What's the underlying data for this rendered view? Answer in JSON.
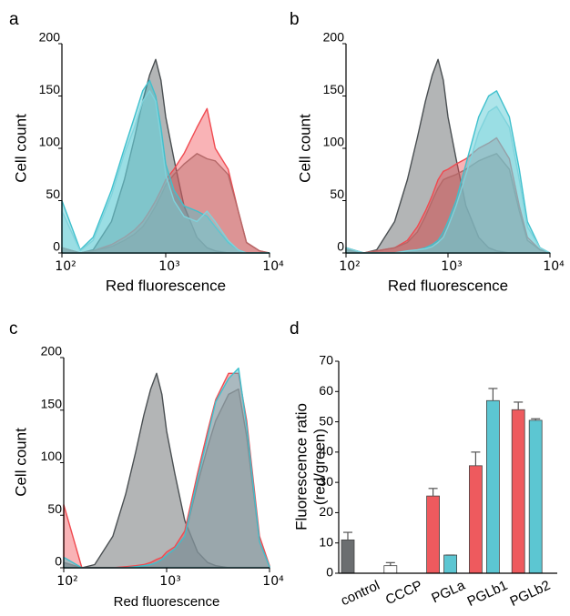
{
  "chart_data": [
    {
      "type": "area",
      "panel_label": "a",
      "ylabel": "Cell count",
      "xlabel": "Red fluorescence",
      "xscale": "log",
      "xlim": [
        100,
        10000
      ],
      "ylim": [
        0,
        200
      ],
      "xticks": [
        {
          "value": 100,
          "label": "10²"
        },
        {
          "value": 1000,
          "label": "10³"
        },
        {
          "value": 10000,
          "label": "10⁴"
        }
      ],
      "yticks": [
        0,
        50,
        100,
        150,
        200
      ],
      "x": [
        100,
        150,
        200,
        300,
        400,
        500,
        600,
        700,
        800,
        900,
        1000,
        1200,
        1500,
        2000,
        2500,
        3000,
        4000,
        5000,
        6000,
        8000,
        10000
      ],
      "series": [
        {
          "color": "#4a4f52",
          "values": [
            5,
            0,
            3,
            30,
            70,
            110,
            145,
            170,
            185,
            165,
            130,
            90,
            45,
            15,
            5,
            2,
            0,
            0,
            0,
            0,
            0
          ]
        },
        {
          "color": "#f04a50",
          "values": [
            5,
            0,
            2,
            8,
            15,
            22,
            30,
            40,
            50,
            60,
            70,
            80,
            95,
            120,
            138,
            100,
            80,
            40,
            10,
            2,
            0
          ]
        },
        {
          "color": "#b46868",
          "values": [
            5,
            0,
            2,
            6,
            12,
            18,
            25,
            35,
            45,
            55,
            65,
            75,
            85,
            95,
            90,
            88,
            75,
            40,
            10,
            2,
            0
          ]
        },
        {
          "color": "#3fc0cd",
          "values": [
            50,
            3,
            15,
            60,
            100,
            130,
            155,
            165,
            150,
            120,
            85,
            60,
            45,
            40,
            35,
            25,
            10,
            3,
            0,
            0,
            0
          ]
        },
        {
          "color": "#7fd3dc",
          "values": [
            40,
            2,
            12,
            55,
            95,
            120,
            145,
            155,
            145,
            110,
            75,
            50,
            35,
            30,
            40,
            30,
            12,
            3,
            0,
            0,
            0
          ]
        }
      ]
    },
    {
      "type": "area",
      "panel_label": "b",
      "ylabel": "Cell count",
      "xlabel": "Red fluorescence",
      "xscale": "log",
      "xlim": [
        100,
        10000
      ],
      "ylim": [
        0,
        200
      ],
      "xticks": [
        {
          "value": 100,
          "label": "10²"
        },
        {
          "value": 1000,
          "label": "10³"
        },
        {
          "value": 10000,
          "label": "10⁴"
        }
      ],
      "yticks": [
        0,
        50,
        100,
        150,
        200
      ],
      "x": [
        100,
        150,
        200,
        300,
        400,
        500,
        600,
        700,
        800,
        900,
        1000,
        1200,
        1500,
        2000,
        2500,
        3000,
        4000,
        5000,
        6000,
        8000,
        10000
      ],
      "series": [
        {
          "color": "#4a4f52",
          "values": [
            5,
            0,
            3,
            30,
            70,
            110,
            145,
            170,
            185,
            165,
            130,
            90,
            45,
            15,
            5,
            2,
            0,
            0,
            0,
            0,
            0
          ]
        },
        {
          "color": "#f04a50",
          "values": [
            3,
            0,
            2,
            5,
            12,
            25,
            40,
            55,
            70,
            78,
            80,
            85,
            90,
            100,
            105,
            110,
            90,
            45,
            15,
            3,
            0
          ]
        },
        {
          "color": "#b46868",
          "values": [
            3,
            0,
            2,
            5,
            10,
            20,
            35,
            50,
            62,
            70,
            72,
            75,
            80,
            88,
            92,
            95,
            80,
            40,
            12,
            3,
            0
          ]
        },
        {
          "color": "#3fc0cd",
          "values": [
            5,
            0,
            0,
            0,
            2,
            3,
            5,
            8,
            12,
            20,
            30,
            50,
            85,
            130,
            150,
            155,
            130,
            80,
            30,
            5,
            0
          ]
        },
        {
          "color": "#7fd3dc",
          "values": [
            5,
            0,
            0,
            0,
            2,
            3,
            4,
            6,
            10,
            15,
            25,
            45,
            75,
            115,
            135,
            140,
            120,
            70,
            25,
            5,
            0
          ]
        }
      ]
    },
    {
      "type": "area",
      "panel_label": "c",
      "ylabel": "Cell count",
      "xlabel": "Red fluorescence",
      "xscale": "log",
      "xlim": [
        100,
        10000
      ],
      "ylim": [
        0,
        200
      ],
      "xticks": [
        {
          "value": 100,
          "label": "10²"
        },
        {
          "value": 1000,
          "label": "10³"
        },
        {
          "value": 10000,
          "label": "10⁴"
        }
      ],
      "yticks": [
        0,
        50,
        100,
        150,
        200
      ],
      "x": [
        100,
        150,
        200,
        300,
        400,
        500,
        600,
        700,
        800,
        900,
        1000,
        1200,
        1500,
        2000,
        2500,
        3000,
        4000,
        5000,
        6000,
        8000,
        10000
      ],
      "series": [
        {
          "color": "#4a4f52",
          "values": [
            5,
            0,
            3,
            30,
            70,
            110,
            145,
            170,
            185,
            165,
            130,
            90,
            45,
            15,
            5,
            2,
            0,
            0,
            0,
            0,
            0
          ]
        },
        {
          "color": "#f04a50",
          "values": [
            60,
            0,
            0,
            0,
            1,
            2,
            3,
            5,
            8,
            10,
            15,
            20,
            35,
            90,
            130,
            160,
            185,
            185,
            140,
            30,
            2
          ]
        },
        {
          "color": "#b46868",
          "values": [
            5,
            0,
            0,
            0,
            0,
            1,
            2,
            3,
            5,
            8,
            12,
            18,
            30,
            80,
            115,
            140,
            165,
            170,
            125,
            25,
            1
          ]
        },
        {
          "color": "#3fc0cd",
          "values": [
            10,
            0,
            0,
            0,
            0,
            1,
            2,
            3,
            5,
            8,
            12,
            18,
            30,
            85,
            125,
            158,
            180,
            190,
            135,
            25,
            1
          ]
        }
      ]
    },
    {
      "type": "bar",
      "panel_label": "d",
      "ylabel": [
        "Fluorescence ratio",
        "(red/green)"
      ],
      "categories": [
        "control",
        "CCCP",
        "PGLa",
        "PGLb1",
        "PGLb2"
      ],
      "ylim": [
        0,
        70
      ],
      "yticks": [
        0,
        10,
        20,
        30,
        40,
        50,
        60,
        70
      ],
      "series": [
        {
          "colors": [
            "#6b6e70",
            "#ffffff",
            "#ee5a5e",
            "#ee5a5e",
            "#ee5a5e"
          ],
          "values": [
            11,
            2.5,
            25.5,
            35.5,
            54
          ],
          "errors": [
            2.5,
            1,
            2.5,
            4.5,
            2.5
          ]
        },
        {
          "color": "#5cc6d2",
          "values": [
            null,
            null,
            6,
            57,
            50.5
          ],
          "errors": [
            null,
            null,
            0,
            4,
            0.5
          ]
        }
      ]
    }
  ]
}
